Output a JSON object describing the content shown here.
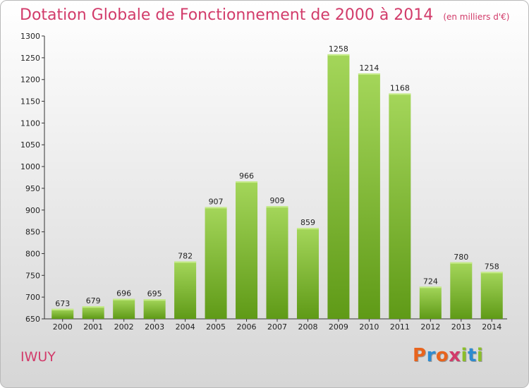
{
  "header": {
    "title": "Dotation Globale de Fonctionnement de 2000 à 2014",
    "unit": "(en milliers d'€)"
  },
  "footer": {
    "commune": "IWUY",
    "logo_text": "Proxiti",
    "logo_colors": [
      "#e8641d",
      "#2e8bd0",
      "#e8641d",
      "#d23b6a",
      "#8bbf2a",
      "#2e8bd0",
      "#8bbf2a"
    ]
  },
  "colors": {
    "bar_top": "#a4d65a",
    "bar_bottom": "#5f9a17",
    "title": "#d23b6a",
    "axis": "#333333"
  },
  "chart_data": {
    "type": "bar",
    "categories": [
      "2000",
      "2001",
      "2002",
      "2003",
      "2004",
      "2005",
      "2006",
      "2007",
      "2008",
      "2009",
      "2010",
      "2011",
      "2012",
      "2013",
      "2014"
    ],
    "values": [
      673,
      679,
      696,
      695,
      782,
      907,
      966,
      909,
      859,
      1258,
      1214,
      1168,
      724,
      780,
      758
    ],
    "ylim": [
      650,
      1300
    ],
    "yticks": [
      650,
      700,
      750,
      800,
      850,
      900,
      950,
      1000,
      1050,
      1100,
      1150,
      1200,
      1250,
      1300
    ],
    "grid": false,
    "data_labels": true
  }
}
